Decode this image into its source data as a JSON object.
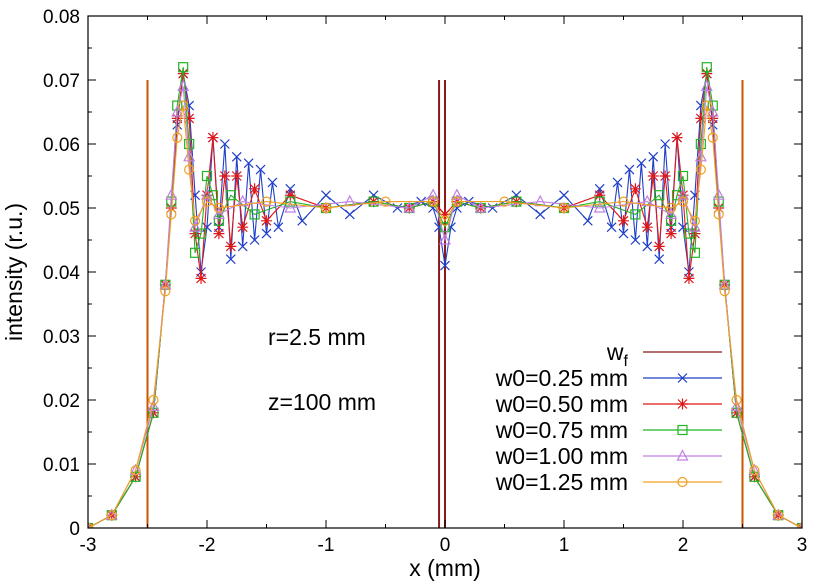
{
  "chart_data": {
    "type": "line",
    "title": "",
    "xlabel": "x (mm)",
    "ylabel": "intensity (r.u.)",
    "xlim": [
      -3,
      3
    ],
    "ylim": [
      0,
      0.08
    ],
    "xticks": [
      -3,
      -2,
      -1,
      0,
      1,
      2,
      3
    ],
    "xtick_labels": [
      "-3",
      "-2",
      "-1",
      "0",
      "1",
      "2",
      "3"
    ],
    "yticks": [
      0,
      0.01,
      0.02,
      0.03,
      0.04,
      0.05,
      0.06,
      0.07,
      0.08
    ],
    "ytick_labels": [
      "0",
      "0.01",
      "0.02",
      "0.03",
      "0.04",
      "0.05",
      "0.06",
      "0.07",
      "0.08"
    ],
    "grid": false,
    "legend_position": "bottom-right",
    "annotations": [
      "r=2.5 mm",
      "z=100 mm"
    ],
    "window_function": {
      "name": "w",
      "name_subscript": "f",
      "color": "#8b1a1a",
      "x_lines": [
        -2.5,
        -0.05,
        0.0,
        2.5
      ],
      "line_top": 0.07,
      "line_colors": [
        "#cc5500",
        "#8b1a1a",
        "#8b1a1a",
        "#cc5500"
      ]
    },
    "series": [
      {
        "name": "w0=0.25 mm",
        "color": "#1f3fc8",
        "marker": "x",
        "points": [
          [
            -3.0,
            0.0
          ],
          [
            -2.8,
            0.002
          ],
          [
            -2.6,
            0.008
          ],
          [
            -2.45,
            0.018
          ],
          [
            -2.35,
            0.038
          ],
          [
            -2.3,
            0.05
          ],
          [
            -2.25,
            0.063
          ],
          [
            -2.2,
            0.071
          ],
          [
            -2.15,
            0.066
          ],
          [
            -2.1,
            0.052
          ],
          [
            -2.05,
            0.04
          ],
          [
            -2.0,
            0.047
          ],
          [
            -1.95,
            0.061
          ],
          [
            -1.9,
            0.047
          ],
          [
            -1.85,
            0.06
          ],
          [
            -1.8,
            0.042
          ],
          [
            -1.75,
            0.058
          ],
          [
            -1.7,
            0.044
          ],
          [
            -1.65,
            0.057
          ],
          [
            -1.6,
            0.045
          ],
          [
            -1.55,
            0.056
          ],
          [
            -1.5,
            0.046
          ],
          [
            -1.45,
            0.054
          ],
          [
            -1.4,
            0.047
          ],
          [
            -1.3,
            0.053
          ],
          [
            -1.2,
            0.048
          ],
          [
            -1.0,
            0.052
          ],
          [
            -0.8,
            0.049
          ],
          [
            -0.6,
            0.052
          ],
          [
            -0.4,
            0.05
          ],
          [
            -0.2,
            0.051
          ],
          [
            -0.1,
            0.05
          ],
          [
            -0.05,
            0.047
          ],
          [
            0.0,
            0.041
          ],
          [
            0.05,
            0.047
          ],
          [
            0.1,
            0.05
          ],
          [
            0.2,
            0.051
          ],
          [
            0.4,
            0.05
          ],
          [
            0.6,
            0.052
          ],
          [
            0.8,
            0.049
          ],
          [
            1.0,
            0.052
          ],
          [
            1.2,
            0.048
          ],
          [
            1.3,
            0.053
          ],
          [
            1.4,
            0.047
          ],
          [
            1.45,
            0.054
          ],
          [
            1.5,
            0.046
          ],
          [
            1.55,
            0.056
          ],
          [
            1.6,
            0.045
          ],
          [
            1.65,
            0.057
          ],
          [
            1.7,
            0.044
          ],
          [
            1.75,
            0.058
          ],
          [
            1.8,
            0.042
          ],
          [
            1.85,
            0.06
          ],
          [
            1.9,
            0.047
          ],
          [
            1.95,
            0.061
          ],
          [
            2.0,
            0.047
          ],
          [
            2.05,
            0.04
          ],
          [
            2.1,
            0.052
          ],
          [
            2.15,
            0.066
          ],
          [
            2.2,
            0.071
          ],
          [
            2.25,
            0.063
          ],
          [
            2.3,
            0.05
          ],
          [
            2.35,
            0.038
          ],
          [
            2.45,
            0.018
          ],
          [
            2.6,
            0.008
          ],
          [
            2.8,
            0.002
          ],
          [
            3.0,
            0.0
          ]
        ]
      },
      {
        "name": "w0=0.50 mm",
        "color": "#e01818",
        "marker": "asterisk",
        "points": [
          [
            -3.0,
            0.0
          ],
          [
            -2.8,
            0.002
          ],
          [
            -2.6,
            0.008
          ],
          [
            -2.45,
            0.018
          ],
          [
            -2.35,
            0.038
          ],
          [
            -2.3,
            0.05
          ],
          [
            -2.25,
            0.064
          ],
          [
            -2.2,
            0.071
          ],
          [
            -2.15,
            0.064
          ],
          [
            -2.1,
            0.046
          ],
          [
            -2.05,
            0.039
          ],
          [
            -2.0,
            0.052
          ],
          [
            -1.95,
            0.061
          ],
          [
            -1.9,
            0.046
          ],
          [
            -1.85,
            0.055
          ],
          [
            -1.8,
            0.044
          ],
          [
            -1.75,
            0.055
          ],
          [
            -1.7,
            0.047
          ],
          [
            -1.6,
            0.053
          ],
          [
            -1.5,
            0.048
          ],
          [
            -1.3,
            0.052
          ],
          [
            -1.0,
            0.05
          ],
          [
            -0.6,
            0.051
          ],
          [
            -0.3,
            0.05
          ],
          [
            -0.1,
            0.051
          ],
          [
            0.0,
            0.049
          ],
          [
            0.1,
            0.051
          ],
          [
            0.3,
            0.05
          ],
          [
            0.6,
            0.051
          ],
          [
            1.0,
            0.05
          ],
          [
            1.3,
            0.052
          ],
          [
            1.5,
            0.048
          ],
          [
            1.6,
            0.053
          ],
          [
            1.7,
            0.047
          ],
          [
            1.75,
            0.055
          ],
          [
            1.8,
            0.044
          ],
          [
            1.85,
            0.055
          ],
          [
            1.9,
            0.046
          ],
          [
            1.95,
            0.061
          ],
          [
            2.0,
            0.052
          ],
          [
            2.05,
            0.039
          ],
          [
            2.1,
            0.046
          ],
          [
            2.15,
            0.064
          ],
          [
            2.2,
            0.071
          ],
          [
            2.25,
            0.064
          ],
          [
            2.3,
            0.05
          ],
          [
            2.35,
            0.038
          ],
          [
            2.45,
            0.018
          ],
          [
            2.6,
            0.008
          ],
          [
            2.8,
            0.002
          ],
          [
            3.0,
            0.0
          ]
        ]
      },
      {
        "name": "w0=0.75 mm",
        "color": "#22b422",
        "marker": "square",
        "points": [
          [
            -3.0,
            0.0
          ],
          [
            -2.8,
            0.002
          ],
          [
            -2.6,
            0.008
          ],
          [
            -2.45,
            0.018
          ],
          [
            -2.35,
            0.038
          ],
          [
            -2.3,
            0.051
          ],
          [
            -2.25,
            0.066
          ],
          [
            -2.2,
            0.072
          ],
          [
            -2.15,
            0.06
          ],
          [
            -2.1,
            0.043
          ],
          [
            -2.05,
            0.046
          ],
          [
            -2.0,
            0.055
          ],
          [
            -1.95,
            0.052
          ],
          [
            -1.9,
            0.048
          ],
          [
            -1.8,
            0.052
          ],
          [
            -1.6,
            0.049
          ],
          [
            -1.3,
            0.051
          ],
          [
            -1.0,
            0.05
          ],
          [
            -0.6,
            0.051
          ],
          [
            -0.3,
            0.05
          ],
          [
            -0.1,
            0.051
          ],
          [
            0.0,
            0.047
          ],
          [
            0.1,
            0.051
          ],
          [
            0.3,
            0.05
          ],
          [
            0.6,
            0.051
          ],
          [
            1.0,
            0.05
          ],
          [
            1.3,
            0.051
          ],
          [
            1.6,
            0.049
          ],
          [
            1.8,
            0.052
          ],
          [
            1.9,
            0.048
          ],
          [
            1.95,
            0.052
          ],
          [
            2.0,
            0.055
          ],
          [
            2.05,
            0.046
          ],
          [
            2.1,
            0.043
          ],
          [
            2.15,
            0.06
          ],
          [
            2.2,
            0.072
          ],
          [
            2.25,
            0.066
          ],
          [
            2.3,
            0.051
          ],
          [
            2.35,
            0.038
          ],
          [
            2.45,
            0.018
          ],
          [
            2.6,
            0.008
          ],
          [
            2.8,
            0.002
          ],
          [
            3.0,
            0.0
          ]
        ]
      },
      {
        "name": "w0=1.00 mm",
        "color": "#c080e0",
        "marker": "triangle",
        "points": [
          [
            -3.0,
            0.0
          ],
          [
            -2.8,
            0.002
          ],
          [
            -2.6,
            0.009
          ],
          [
            -2.45,
            0.019
          ],
          [
            -2.35,
            0.038
          ],
          [
            -2.3,
            0.052
          ],
          [
            -2.25,
            0.065
          ],
          [
            -2.2,
            0.069
          ],
          [
            -2.15,
            0.058
          ],
          [
            -2.1,
            0.047
          ],
          [
            -2.0,
            0.052
          ],
          [
            -1.9,
            0.049
          ],
          [
            -1.7,
            0.051
          ],
          [
            -1.3,
            0.05
          ],
          [
            -0.8,
            0.051
          ],
          [
            -0.3,
            0.05
          ],
          [
            -0.1,
            0.052
          ],
          [
            0.0,
            0.045
          ],
          [
            0.1,
            0.052
          ],
          [
            0.3,
            0.05
          ],
          [
            0.8,
            0.051
          ],
          [
            1.3,
            0.05
          ],
          [
            1.7,
            0.051
          ],
          [
            1.9,
            0.049
          ],
          [
            2.0,
            0.052
          ],
          [
            2.1,
            0.047
          ],
          [
            2.15,
            0.058
          ],
          [
            2.2,
            0.069
          ],
          [
            2.25,
            0.065
          ],
          [
            2.3,
            0.052
          ],
          [
            2.35,
            0.038
          ],
          [
            2.45,
            0.019
          ],
          [
            2.6,
            0.009
          ],
          [
            2.8,
            0.002
          ],
          [
            3.0,
            0.0
          ]
        ]
      },
      {
        "name": "w0=1.25 mm",
        "color": "#f0a020",
        "marker": "circle",
        "points": [
          [
            -3.0,
            0.0
          ],
          [
            -2.8,
            0.002
          ],
          [
            -2.6,
            0.009
          ],
          [
            -2.45,
            0.02
          ],
          [
            -2.35,
            0.037
          ],
          [
            -2.3,
            0.049
          ],
          [
            -2.25,
            0.061
          ],
          [
            -2.2,
            0.066
          ],
          [
            -2.15,
            0.056
          ],
          [
            -2.1,
            0.048
          ],
          [
            -2.0,
            0.051
          ],
          [
            -1.9,
            0.05
          ],
          [
            -1.5,
            0.051
          ],
          [
            -1.0,
            0.05
          ],
          [
            -0.5,
            0.051
          ],
          [
            -0.1,
            0.051
          ],
          [
            0.0,
            0.048
          ],
          [
            0.1,
            0.051
          ],
          [
            0.5,
            0.051
          ],
          [
            1.0,
            0.05
          ],
          [
            1.5,
            0.051
          ],
          [
            1.9,
            0.05
          ],
          [
            2.0,
            0.051
          ],
          [
            2.1,
            0.048
          ],
          [
            2.15,
            0.056
          ],
          [
            2.2,
            0.066
          ],
          [
            2.25,
            0.061
          ],
          [
            2.3,
            0.049
          ],
          [
            2.35,
            0.037
          ],
          [
            2.45,
            0.02
          ],
          [
            2.6,
            0.009
          ],
          [
            2.8,
            0.002
          ],
          [
            3.0,
            0.0
          ]
        ]
      }
    ]
  }
}
